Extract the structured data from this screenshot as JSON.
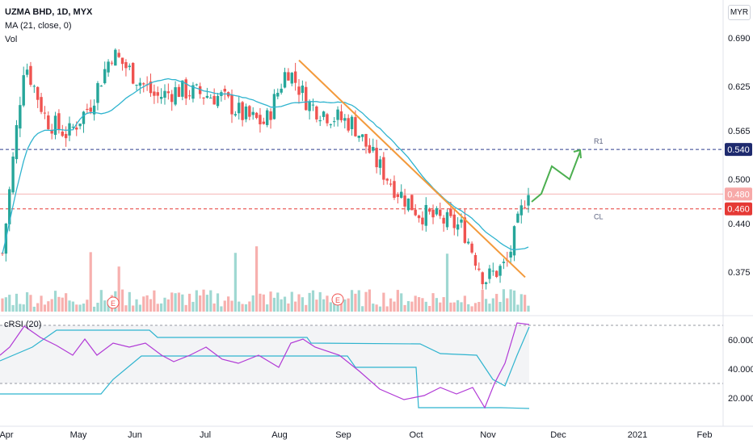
{
  "header": {
    "symbol_line": "UZMA BHD, 1D, MYX",
    "ma_line": "MA (21, close, 0)",
    "vol_line": "Vol",
    "rsi_line": "cRSI (20)",
    "currency": "MYR"
  },
  "colors": {
    "up": "#26a69a",
    "down": "#ef5350",
    "ma": "#2fb4cf",
    "trendline": "#f39a3c",
    "projection": "#4caf50",
    "crsi": "#b13ad6",
    "band": "#2fb4cf",
    "r1_line": "#2d3f8f",
    "cl_line": "#e53935",
    "hl_line": "#f4b4b4"
  },
  "chart_data": {
    "type": "candlestick",
    "price_axis": {
      "ticks": [
        "0.690",
        "0.625",
        "0.565",
        "0.500",
        "0.440",
        "0.375"
      ]
    },
    "x_axis": {
      "ticks": [
        "Apr",
        "May",
        "Jun",
        "Jul",
        "Aug",
        "Sep",
        "Oct",
        "Nov",
        "Dec",
        "2021",
        "Feb"
      ]
    },
    "levels": [
      {
        "label": "R1",
        "price": 0.54,
        "badge": "0.540"
      },
      {
        "label": "CL",
        "price": 0.46,
        "badge": "0.460"
      },
      {
        "label": "",
        "price": 0.48,
        "badge": "0.480"
      }
    ],
    "candles_anchor": [
      [
        "Apr",
        0.4
      ],
      [
        "Apr-mid",
        0.66
      ],
      [
        "Apr-end",
        0.58
      ],
      [
        "May",
        0.56
      ],
      [
        "May-mid",
        0.6
      ],
      [
        "May-end",
        0.67
      ],
      [
        "Jun",
        0.64
      ],
      [
        "Jun-mid",
        0.61
      ],
      [
        "Jun-end",
        0.62
      ],
      [
        "Jul",
        0.615
      ],
      [
        "Jul-mid",
        0.61
      ],
      [
        "Jul-end",
        0.585
      ],
      [
        "Aug",
        0.575
      ],
      [
        "Aug-early",
        0.65
      ],
      [
        "Aug-mid",
        0.6
      ],
      [
        "Aug-end",
        0.585
      ],
      [
        "Sep",
        0.575
      ],
      [
        "Sep-mid",
        0.525
      ],
      [
        "Sep-end",
        0.485
      ],
      [
        "Oct",
        0.455
      ],
      [
        "Oct-mid",
        0.445
      ],
      [
        "Oct-end",
        0.435
      ],
      [
        "Nov",
        0.365
      ],
      [
        "Nov-mid",
        0.385
      ],
      [
        "Nov-late",
        0.49
      ]
    ],
    "annotations": [
      "E",
      "E"
    ],
    "rsi": {
      "ticks": [
        "60.000",
        "40.000",
        "20.000"
      ],
      "upper_level": 70,
      "lower_level": 30
    }
  }
}
